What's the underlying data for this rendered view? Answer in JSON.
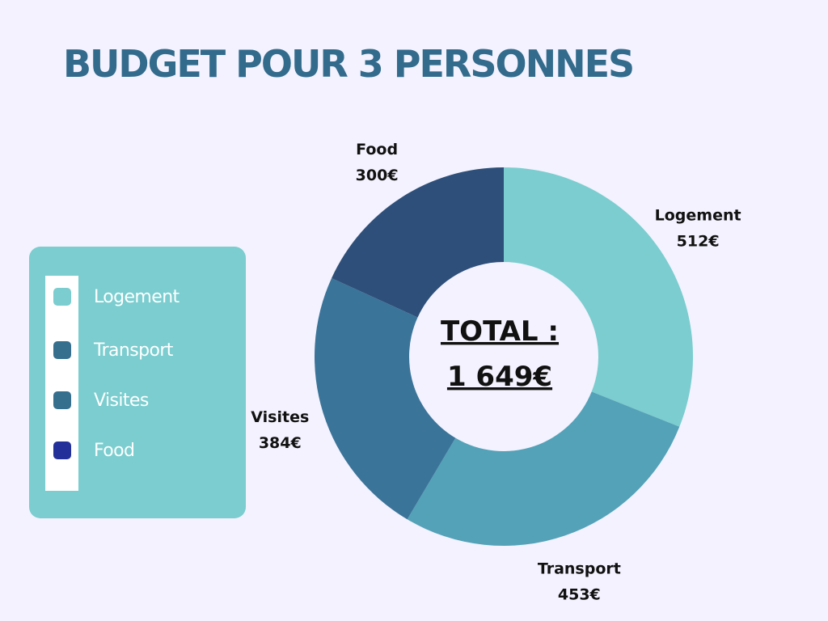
{
  "title": "BUDGET POUR 3 PERSONNES",
  "colors": {
    "background": "#f3f2fe",
    "title": "#336b8c",
    "legend_panel": "#7bcdcf",
    "legend_strip": "#ffffff"
  },
  "legend": {
    "items": [
      {
        "label": "Logement",
        "color": "#7bcdcf"
      },
      {
        "label": "Transport",
        "color": "#356f8d"
      },
      {
        "label": "Visites",
        "color": "#356f8d"
      },
      {
        "label": "Food",
        "color": "#23309a"
      }
    ]
  },
  "chart_data": {
    "type": "pie",
    "donut": true,
    "slices": [
      {
        "label": "Logement",
        "value": 512,
        "value_label": "512€",
        "color": "#7bcdcf"
      },
      {
        "label": "Transport",
        "value": 453,
        "value_label": "453€",
        "color": "#54a2b8"
      },
      {
        "label": "Visites",
        "value": 384,
        "value_label": "384€",
        "color": "#3b7499"
      },
      {
        "label": "Food",
        "value": 300,
        "value_label": "300€",
        "color": "#2e4f79"
      }
    ],
    "center_text": [
      "TOTAL :",
      "1 649€"
    ]
  }
}
